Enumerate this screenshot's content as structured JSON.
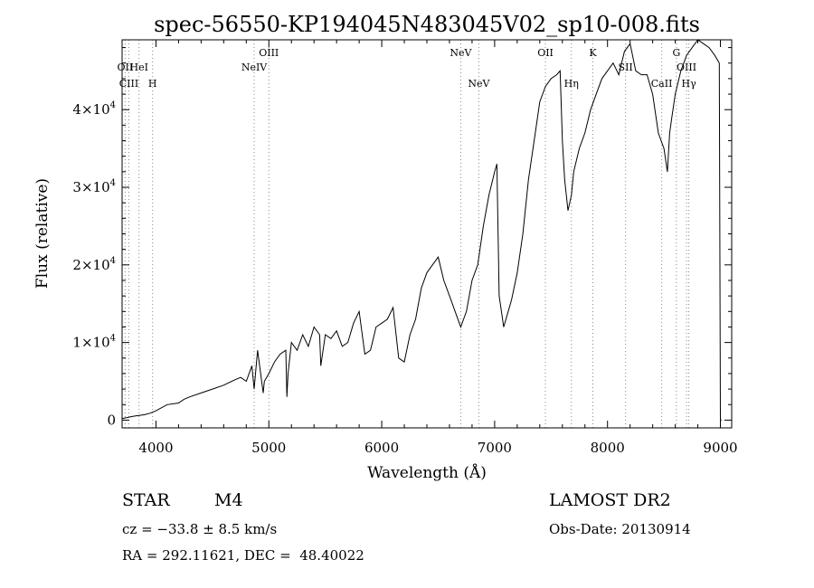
{
  "chart_data": {
    "type": "line",
    "title": "spec-56550-KP194045N483045V02_sp10-008.fits",
    "xlabel": "Wavelength (Å)",
    "ylabel": "Flux (relative)",
    "xlim": [
      3700,
      9100
    ],
    "ylim": [
      -1000,
      49000
    ],
    "x_ticks": [
      4000,
      5000,
      6000,
      7000,
      8000,
      9000
    ],
    "x_tick_labels": [
      "4000",
      "5000",
      "6000",
      "7000",
      "8000",
      "9000"
    ],
    "y_ticks": [
      0,
      10000,
      20000,
      30000,
      40000
    ],
    "y_tick_labels": [
      {
        "mantissa": "0",
        "exp": ""
      },
      {
        "mantissa": "1×10",
        "exp": "4"
      },
      {
        "mantissa": "2×10",
        "exp": "4"
      },
      {
        "mantissa": "3×10",
        "exp": "4"
      },
      {
        "mantissa": "4×10",
        "exp": "4"
      }
    ],
    "grid": false,
    "legend": "none",
    "series": [
      {
        "x": [
          3700,
          3800,
          3900,
          3950,
          4000,
          4100,
          4200,
          4250,
          4300,
          4400,
          4500,
          4600,
          4700,
          4750,
          4800,
          4850,
          4870,
          4900,
          4950,
          4960,
          4980,
          5000,
          5050,
          5100,
          5150,
          5160,
          5170,
          5200,
          5250,
          5300,
          5350,
          5400,
          5450,
          5460,
          5500,
          5550,
          5600,
          5650,
          5700,
          5750,
          5800,
          5850,
          5900,
          5950,
          6000,
          6050,
          6100,
          6150,
          6200,
          6250,
          6300,
          6350,
          6400,
          6450,
          6500,
          6550,
          6600,
          6650,
          6700,
          6750,
          6800,
          6850,
          6900,
          6950,
          7000,
          7020,
          7040,
          7060,
          7080,
          7100,
          7120,
          7150,
          7200,
          7250,
          7300,
          7350,
          7400,
          7450,
          7500,
          7550,
          7580,
          7600,
          7620,
          7650,
          7680,
          7700,
          7750,
          7800,
          7850,
          7900,
          7950,
          8000,
          8050,
          8100,
          8150,
          8200,
          8250,
          8300,
          8350,
          8400,
          8450,
          8500,
          8530,
          8550,
          8570,
          8600,
          8650,
          8700,
          8750,
          8800,
          8850,
          8900,
          8950,
          8990,
          9000,
          9010
        ],
        "y": [
          200,
          500,
          700,
          900,
          1200,
          2000,
          2200,
          2700,
          3000,
          3500,
          4000,
          4500,
          5200,
          5500,
          5000,
          7000,
          4000,
          9000,
          3500,
          5000,
          5500,
          6000,
          7500,
          8500,
          9000,
          3000,
          6000,
          10000,
          9000,
          11000,
          9500,
          12000,
          11000,
          7000,
          11000,
          10500,
          11500,
          9500,
          10000,
          12500,
          14000,
          8500,
          9000,
          12000,
          12500,
          13000,
          14500,
          8000,
          7500,
          11000,
          13000,
          17000,
          19000,
          20000,
          21000,
          18000,
          16000,
          14000,
          12000,
          14000,
          18000,
          20000,
          25000,
          29000,
          32000,
          33000,
          16000,
          14000,
          12000,
          13000,
          14000,
          15500,
          19000,
          24000,
          31000,
          36000,
          41000,
          43000,
          44000,
          44500,
          45000,
          36000,
          31000,
          27000,
          29000,
          32000,
          35000,
          37000,
          40000,
          42000,
          44000,
          45000,
          46000,
          44500,
          47500,
          48500,
          45000,
          44500,
          44500,
          42000,
          37000,
          35000,
          32000,
          37000,
          39000,
          42000,
          45000,
          47000,
          48000,
          49000,
          48500,
          48000,
          47000,
          46000,
          0,
          0
        ]
      }
    ],
    "line_markers": [
      {
        "label": "OII",
        "x": 3727,
        "row": 1
      },
      {
        "label": "CIII",
        "x": 3760,
        "row": 2
      },
      {
        "label": "HeI",
        "x": 3850,
        "row": 1
      },
      {
        "label": "H",
        "x": 3970,
        "row": 2
      },
      {
        "label": "NeIV",
        "x": 4870,
        "row": 1
      },
      {
        "label": "OIII",
        "x": 5000,
        "row": 0
      },
      {
        "label": "NeV",
        "x": 6700,
        "row": 0
      },
      {
        "label": "NeV",
        "x": 6860,
        "row": 2
      },
      {
        "label": "OII",
        "x": 7450,
        "row": 0
      },
      {
        "label": "Hη",
        "x": 7680,
        "row": 2
      },
      {
        "label": "K",
        "x": 7870,
        "row": 0
      },
      {
        "label": "SII",
        "x": 8160,
        "row": 1
      },
      {
        "label": "CaII",
        "x": 8480,
        "row": 2
      },
      {
        "label": "G",
        "x": 8610,
        "row": 0
      },
      {
        "label": "Hγ",
        "x": 8720,
        "row": 2
      },
      {
        "label": "OIII",
        "x": 8700,
        "row": 1
      }
    ]
  },
  "info": {
    "object_type": "STAR",
    "subclass": "M4",
    "survey": "LAMOST DR2",
    "cz": "cz = −33.8 ± 8.5 km/s",
    "obs_date": "Obs-Date: 20130914",
    "coords": "RA = 292.11621, DEC =  48.40022"
  }
}
